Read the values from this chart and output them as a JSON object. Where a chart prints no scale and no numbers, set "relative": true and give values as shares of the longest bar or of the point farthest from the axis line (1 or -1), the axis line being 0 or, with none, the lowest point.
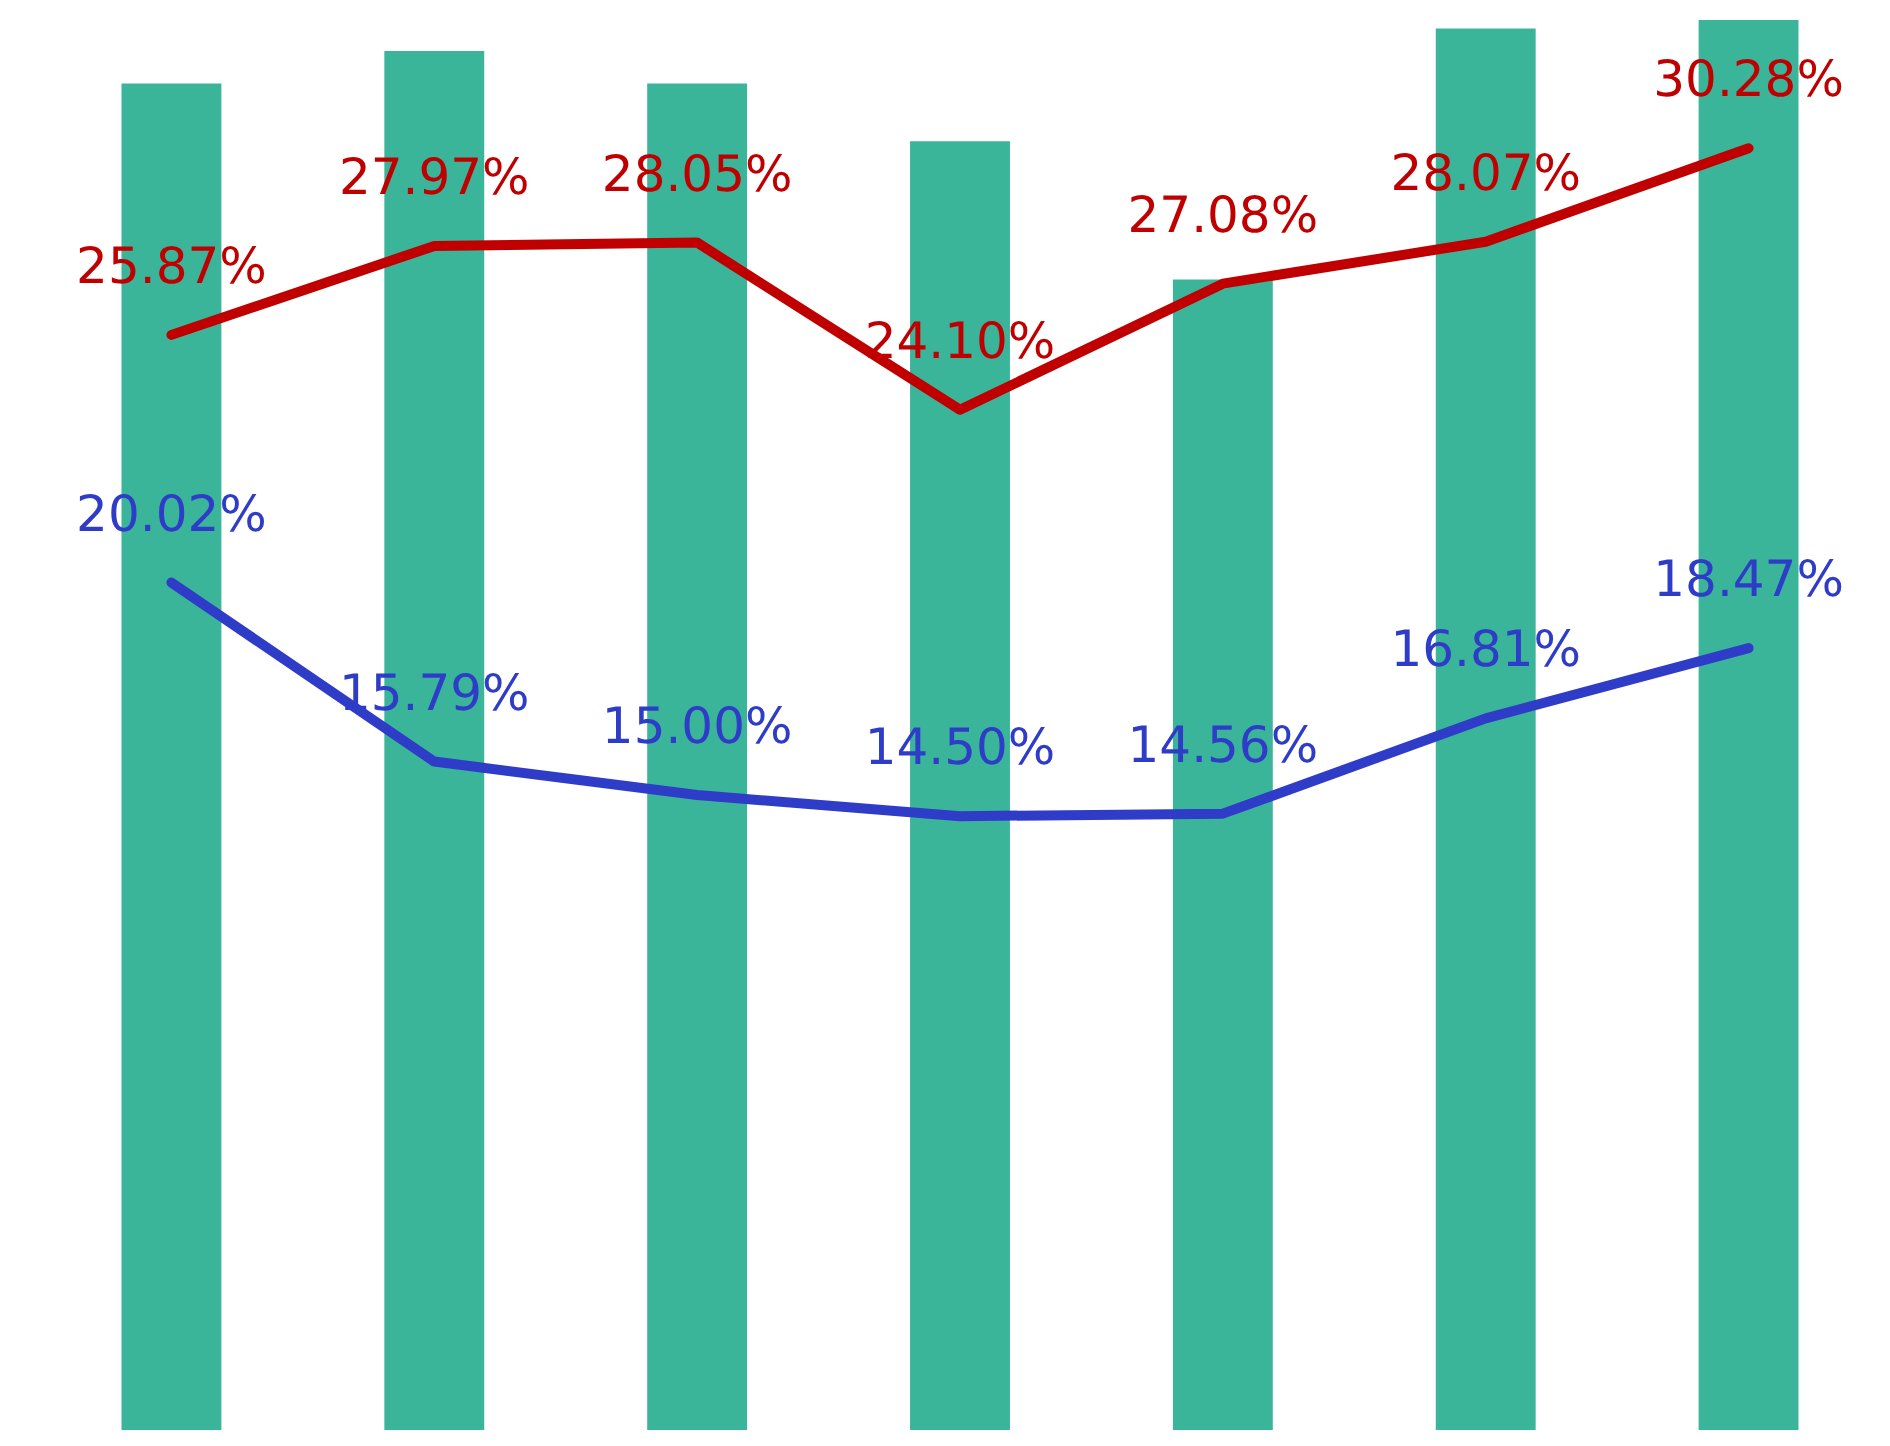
{
  "chart_data": [
    {
      "type": "bar",
      "relative": true,
      "categories": [
        null,
        null,
        null,
        null,
        null,
        null,
        null
      ],
      "color": "#3ab59a",
      "values": [
        0.955,
        0.978,
        0.955,
        0.914,
        0.816,
        0.994,
        1
      ]
    },
    {
      "type": "line",
      "categories": [
        null,
        null,
        null,
        null,
        null,
        null,
        null
      ],
      "marker": "none",
      "line_style": "solid",
      "series": [
        {
          "color": "#c00000",
          "values": [
            25.87,
            27.97,
            28.05,
            24.1,
            27.08,
            28.07,
            30.28
          ],
          "value_labels": [
            "25.87%",
            "27.97%",
            "28.05%",
            "24.10%",
            "27.08%",
            "28.07%",
            "30.28%"
          ]
        },
        {
          "color": "#2e3cc8",
          "values": [
            20.02,
            15.79,
            15.0,
            14.5,
            14.56,
            16.81,
            18.47
          ],
          "value_labels": [
            "20.02%",
            "15.79%",
            "15.00%",
            "14.50%",
            "14.56%",
            "16.81%",
            "18.47%"
          ]
        }
      ]
    }
  ]
}
